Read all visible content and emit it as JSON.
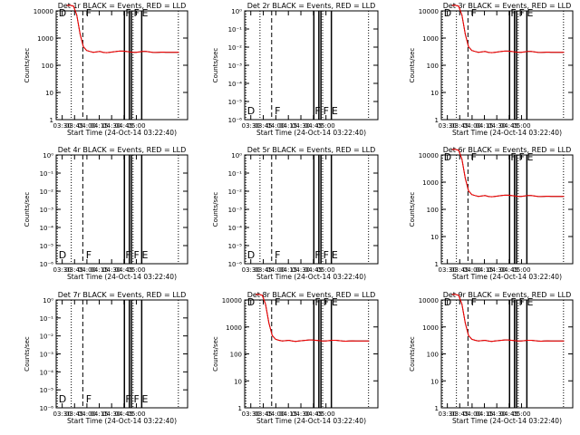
{
  "chart_data": [
    {
      "type": "line",
      "title": "Det 1r BLACK = Events, RED = LLD",
      "xlabel": "Start Time (24-Oct-14 03:22:40)",
      "ylabel": "Counts/sec",
      "ylim_log10": [
        0,
        4
      ],
      "y_scale": "log",
      "y_tick_labels": [
        "1",
        "10",
        "100",
        "1000",
        "10000"
      ],
      "x_tick_labels": [
        "03:30",
        "03:45",
        "04:00",
        "04:15",
        "04:30",
        "04:45",
        "05:00"
      ],
      "has_data": true,
      "series": [
        {
          "name": "Events",
          "color": "#000000",
          "x_min": [
            13,
            17,
            21,
            25,
            29,
            33,
            37,
            41,
            45,
            49,
            53,
            57,
            61,
            65,
            69,
            73,
            77,
            81,
            85,
            89,
            93,
            97,
            101,
            105,
            109,
            113,
            117,
            121,
            125,
            129,
            133,
            137,
            141,
            145,
            149
          ],
          "y": [
            16000,
            16000,
            15000,
            7000,
            1400,
            480,
            350,
            320,
            300,
            310,
            320,
            300,
            290,
            300,
            310,
            320,
            330,
            330,
            320,
            310,
            300,
            300,
            310,
            320,
            320,
            310,
            300,
            295,
            300,
            305,
            300,
            300,
            300,
            300,
            300
          ]
        },
        {
          "name": "LLD",
          "color": "#ff0000",
          "x_min": [
            13,
            17,
            21,
            25,
            29,
            33,
            37,
            41,
            45,
            49,
            53,
            57,
            61,
            65,
            69,
            73,
            77,
            81,
            85,
            89,
            93,
            97,
            101,
            105,
            109,
            113,
            117,
            121,
            125,
            129,
            133,
            137,
            141,
            145,
            149
          ],
          "y": [
            16000,
            16000,
            15000,
            7000,
            1400,
            480,
            350,
            320,
            300,
            310,
            320,
            300,
            290,
            300,
            310,
            320,
            330,
            330,
            320,
            310,
            300,
            300,
            310,
            320,
            320,
            310,
            300,
            295,
            300,
            305,
            300,
            300,
            300,
            300,
            300
          ]
        }
      ]
    },
    {
      "type": "line",
      "title": "Det 2r BLACK = Events, RED = LLD",
      "xlabel": "Start Time (24-Oct-14 03:22:40)",
      "ylabel": "Counts/sec",
      "ylim_log10": [
        0,
        -6
      ],
      "y_scale": "log",
      "y_tick_labels": [
        "10⁰",
        "10⁻¹",
        "10⁻²",
        "10⁻³",
        "10⁻⁴",
        "10⁻⁵",
        "10⁻⁶"
      ],
      "x_tick_labels": [
        "03:30",
        "03:45",
        "04:00",
        "04:15",
        "04:30",
        "04:45",
        "05:00"
      ],
      "has_data": false,
      "markers": [
        "D",
        "F",
        "F",
        "F",
        "E"
      ],
      "series": []
    },
    {
      "type": "line",
      "title": "Det 3r BLACK = Events, RED = LLD",
      "xlabel": "Start Time (24-Oct-14 03:22:40)",
      "ylabel": "Counts/sec",
      "ylim_log10": [
        0,
        4
      ],
      "y_scale": "log",
      "y_tick_labels": [
        "1",
        "10",
        "100",
        "1000",
        "10000"
      ],
      "x_tick_labels": [
        "03:30",
        "03:45",
        "04:00",
        "04:15",
        "04:30",
        "04:45",
        "05:00"
      ],
      "has_data": true,
      "series": [
        {
          "name": "Events",
          "color": "#000000",
          "x_min": [
            13,
            17,
            21,
            25,
            29,
            33,
            37,
            41,
            45,
            49,
            53,
            57,
            61,
            65,
            69,
            73,
            77,
            81,
            85,
            89,
            93,
            97,
            101,
            105,
            109,
            113,
            117,
            121,
            125,
            129,
            133,
            137,
            141,
            145,
            149
          ],
          "y": [
            16000,
            16000,
            15000,
            7000,
            1400,
            480,
            350,
            320,
            300,
            310,
            320,
            300,
            290,
            300,
            310,
            320,
            330,
            330,
            320,
            310,
            300,
            300,
            310,
            320,
            320,
            310,
            300,
            295,
            300,
            305,
            300,
            300,
            300,
            300,
            300
          ]
        },
        {
          "name": "LLD",
          "color": "#ff0000",
          "x_min": [
            13,
            17,
            21,
            25,
            29,
            33,
            37,
            41,
            45,
            49,
            53,
            57,
            61,
            65,
            69,
            73,
            77,
            81,
            85,
            89,
            93,
            97,
            101,
            105,
            109,
            113,
            117,
            121,
            125,
            129,
            133,
            137,
            141,
            145,
            149
          ],
          "y": [
            16000,
            16000,
            15000,
            7000,
            1400,
            480,
            350,
            320,
            300,
            310,
            320,
            300,
            290,
            300,
            310,
            320,
            330,
            330,
            320,
            310,
            300,
            300,
            310,
            320,
            320,
            310,
            300,
            295,
            300,
            305,
            300,
            300,
            300,
            300,
            300
          ]
        }
      ]
    },
    {
      "type": "line",
      "title": "Det 4r BLACK = Events, RED = LLD",
      "xlabel": "Start Time (24-Oct-14 03:22:40)",
      "ylabel": "Counts/sec",
      "ylim_log10": [
        0,
        -6
      ],
      "y_scale": "log",
      "y_tick_labels": [
        "10⁰",
        "10⁻¹",
        "10⁻²",
        "10⁻³",
        "10⁻⁴",
        "10⁻⁵",
        "10⁻⁶"
      ],
      "x_tick_labels": [
        "03:30",
        "03:45",
        "04:00",
        "04:15",
        "04:30",
        "04:45",
        "05:00"
      ],
      "has_data": false,
      "markers": [
        "D",
        "F",
        "F",
        "F",
        "E"
      ],
      "series": []
    },
    {
      "type": "line",
      "title": "Det 5r BLACK = Events, RED = LLD",
      "xlabel": "Start Time (24-Oct-14 03:22:40)",
      "ylabel": "Counts/sec",
      "ylim_log10": [
        0,
        -6
      ],
      "y_scale": "log",
      "y_tick_labels": [
        "10⁰",
        "10⁻¹",
        "10⁻²",
        "10⁻³",
        "10⁻⁴",
        "10⁻⁵",
        "10⁻⁶"
      ],
      "x_tick_labels": [
        "03:30",
        "03:45",
        "04:00",
        "04:15",
        "04:30",
        "04:45",
        "05:00"
      ],
      "has_data": false,
      "markers": [
        "D",
        "F",
        "F",
        "F",
        "E"
      ],
      "series": []
    },
    {
      "type": "line",
      "title": "Det 6r BLACK = Events, RED = LLD",
      "xlabel": "Start Time (24-Oct-14 03:22:40)",
      "ylabel": "Counts/sec",
      "ylim_log10": [
        0,
        4
      ],
      "y_scale": "log",
      "y_tick_labels": [
        "1",
        "10",
        "100",
        "1000",
        "10000"
      ],
      "x_tick_labels": [
        "03:30",
        "03:45",
        "04:00",
        "04:15",
        "04:30",
        "04:45",
        "05:00"
      ],
      "has_data": true,
      "series": [
        {
          "name": "Events",
          "color": "#000000",
          "x_min": [
            13,
            17,
            21,
            25,
            29,
            33,
            37,
            41,
            45,
            49,
            53,
            57,
            61,
            65,
            69,
            73,
            77,
            81,
            85,
            89,
            93,
            97,
            101,
            105,
            109,
            113,
            117,
            121,
            125,
            129,
            133,
            137,
            141,
            145,
            149
          ],
          "y": [
            16000,
            16000,
            15000,
            7000,
            1400,
            480,
            350,
            320,
            300,
            310,
            320,
            300,
            290,
            300,
            310,
            320,
            330,
            330,
            320,
            310,
            300,
            300,
            310,
            320,
            320,
            310,
            300,
            295,
            300,
            305,
            300,
            300,
            300,
            300,
            300
          ]
        },
        {
          "name": "LLD",
          "color": "#ff0000",
          "x_min": [
            13,
            17,
            21,
            25,
            29,
            33,
            37,
            41,
            45,
            49,
            53,
            57,
            61,
            65,
            69,
            73,
            77,
            81,
            85,
            89,
            93,
            97,
            101,
            105,
            109,
            113,
            117,
            121,
            125,
            129,
            133,
            137,
            141,
            145,
            149
          ],
          "y": [
            16000,
            16000,
            15000,
            7000,
            1400,
            480,
            350,
            320,
            300,
            310,
            320,
            300,
            290,
            300,
            310,
            320,
            330,
            330,
            320,
            310,
            300,
            300,
            310,
            320,
            320,
            310,
            300,
            295,
            300,
            305,
            300,
            300,
            300,
            300,
            300
          ]
        }
      ]
    },
    {
      "type": "line",
      "title": "Det 7r BLACK = Events, RED = LLD",
      "xlabel": "Start Time (24-Oct-14 03:22:40)",
      "ylabel": "Counts/sec",
      "ylim_log10": [
        0,
        -6
      ],
      "y_scale": "log",
      "y_tick_labels": [
        "10⁰",
        "10⁻¹",
        "10⁻²",
        "10⁻³",
        "10⁻⁴",
        "10⁻⁵",
        "10⁻⁶"
      ],
      "x_tick_labels": [
        "03:30",
        "03:45",
        "04:00",
        "04:15",
        "04:30",
        "04:45",
        "05:00"
      ],
      "has_data": false,
      "markers": [
        "D",
        "F",
        "F",
        "F",
        "E"
      ],
      "series": []
    },
    {
      "type": "line",
      "title": "Det 8r BLACK = Events, RED = LLD",
      "xlabel": "Start Time (24-Oct-14 03:22:40)",
      "ylabel": "Counts/sec",
      "ylim_log10": [
        0,
        4
      ],
      "y_scale": "log",
      "y_tick_labels": [
        "1",
        "10",
        "100",
        "1000",
        "10000"
      ],
      "x_tick_labels": [
        "03:30",
        "03:45",
        "04:00",
        "04:15",
        "04:30",
        "04:45",
        "05:00"
      ],
      "has_data": true,
      "series": [
        {
          "name": "Events",
          "color": "#000000",
          "x_min": [
            13,
            17,
            21,
            25,
            29,
            33,
            37,
            41,
            45,
            49,
            53,
            57,
            61,
            65,
            69,
            73,
            77,
            81,
            85,
            89,
            93,
            97,
            101,
            105,
            109,
            113,
            117,
            121,
            125,
            129,
            133,
            137,
            141,
            145,
            149
          ],
          "y": [
            16000,
            16000,
            15000,
            7000,
            1400,
            480,
            350,
            320,
            300,
            310,
            320,
            300,
            290,
            300,
            310,
            320,
            330,
            330,
            320,
            310,
            300,
            300,
            310,
            320,
            320,
            310,
            300,
            295,
            300,
            305,
            300,
            300,
            300,
            300,
            300
          ]
        },
        {
          "name": "LLD",
          "color": "#ff0000",
          "x_min": [
            13,
            17,
            21,
            25,
            29,
            33,
            37,
            41,
            45,
            49,
            53,
            57,
            61,
            65,
            69,
            73,
            77,
            81,
            85,
            89,
            93,
            97,
            101,
            105,
            109,
            113,
            117,
            121,
            125,
            129,
            133,
            137,
            141,
            145,
            149
          ],
          "y": [
            16000,
            16000,
            15000,
            7000,
            1400,
            480,
            350,
            320,
            300,
            310,
            320,
            300,
            290,
            300,
            310,
            320,
            330,
            330,
            320,
            310,
            300,
            300,
            310,
            320,
            320,
            310,
            300,
            295,
            300,
            305,
            300,
            300,
            300,
            300,
            300
          ]
        }
      ]
    },
    {
      "type": "line",
      "title": "Det 9r BLACK = Events, RED = LLD",
      "xlabel": "Start Time (24-Oct-14 03:22:40)",
      "ylabel": "Counts/sec",
      "ylim_log10": [
        0,
        4
      ],
      "y_scale": "log",
      "y_tick_labels": [
        "1",
        "10",
        "100",
        "1000",
        "10000"
      ],
      "x_tick_labels": [
        "03:30",
        "03:45",
        "04:00",
        "04:15",
        "04:30",
        "04:45",
        "05:00"
      ],
      "has_data": true,
      "series": [
        {
          "name": "Events",
          "color": "#000000",
          "x_min": [
            13,
            17,
            21,
            25,
            29,
            33,
            37,
            41,
            45,
            49,
            53,
            57,
            61,
            65,
            69,
            73,
            77,
            81,
            85,
            89,
            93,
            97,
            101,
            105,
            109,
            113,
            117,
            121,
            125,
            129,
            133,
            137,
            141,
            145,
            149
          ],
          "y": [
            16000,
            16000,
            15000,
            7000,
            1400,
            480,
            350,
            320,
            300,
            310,
            320,
            300,
            290,
            300,
            310,
            320,
            330,
            330,
            320,
            310,
            300,
            300,
            310,
            320,
            320,
            310,
            300,
            295,
            300,
            305,
            300,
            300,
            300,
            300,
            300
          ]
        },
        {
          "name": "LLD",
          "color": "#ff0000",
          "x_min": [
            13,
            17,
            21,
            25,
            29,
            33,
            37,
            41,
            45,
            49,
            53,
            57,
            61,
            65,
            69,
            73,
            77,
            81,
            85,
            89,
            93,
            97,
            101,
            105,
            109,
            113,
            117,
            121,
            125,
            129,
            133,
            137,
            141,
            145,
            149
          ],
          "y": [
            16000,
            16000,
            15000,
            7000,
            1400,
            480,
            350,
            320,
            300,
            310,
            320,
            300,
            290,
            300,
            310,
            320,
            330,
            330,
            320,
            310,
            300,
            300,
            310,
            320,
            320,
            310,
            300,
            295,
            300,
            305,
            300,
            300,
            300,
            300,
            300
          ]
        }
      ]
    }
  ],
  "event_markers_min": {
    "dotted": [
      1.3,
      18.3,
      93.3,
      148.3
    ],
    "dashed": [
      32.3
    ],
    "solid": [
      82.8,
      88.8,
      91.3,
      103.8
    ]
  },
  "marker_letters": [
    "D",
    "F",
    "F",
    "F",
    "E"
  ]
}
